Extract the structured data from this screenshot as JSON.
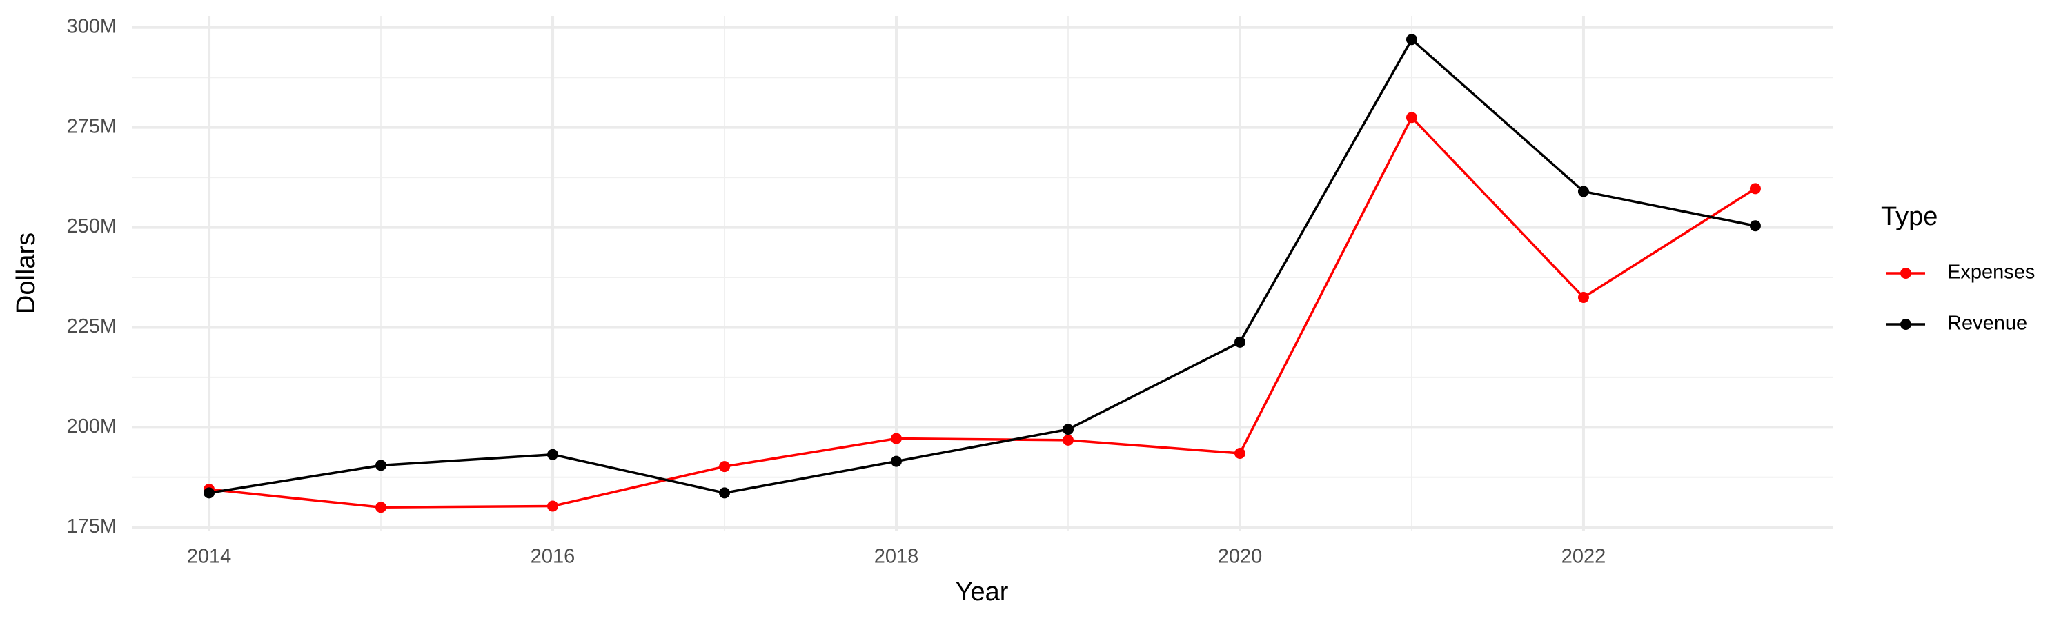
{
  "chart_data": {
    "type": "line",
    "x_label": "Year",
    "y_label": "Dollars",
    "x": [
      2014,
      2015,
      2016,
      2017,
      2018,
      2019,
      2020,
      2021,
      2022,
      2023
    ],
    "series": [
      {
        "name": "Expenses",
        "color": "#ff0000",
        "values": [
          184500000,
          180000000,
          180300000,
          190200000,
          197200000,
          196800000,
          193500000,
          277500000,
          232500000,
          259700000
        ]
      },
      {
        "name": "Revenue",
        "color": "#000000",
        "values": [
          183600000,
          190500000,
          193200000,
          183600000,
          191500000,
          199500000,
          221300000,
          297000000,
          259000000,
          250400000
        ]
      }
    ],
    "xlim": [
      2013.55,
      2023.45
    ],
    "xticks": [
      2014,
      2016,
      2018,
      2020,
      2022
    ],
    "ylim": [
      174000000,
      302900000
    ],
    "yticks": [
      {
        "value": 175000000,
        "label": "175M"
      },
      {
        "value": 200000000,
        "label": "200M"
      },
      {
        "value": 225000000,
        "label": "225M"
      },
      {
        "value": 250000000,
        "label": "250M"
      },
      {
        "value": 275000000,
        "label": "275M"
      },
      {
        "value": 300000000,
        "label": "300M"
      }
    ],
    "grid": true,
    "legend_title": "Type",
    "legend_position": "right"
  }
}
